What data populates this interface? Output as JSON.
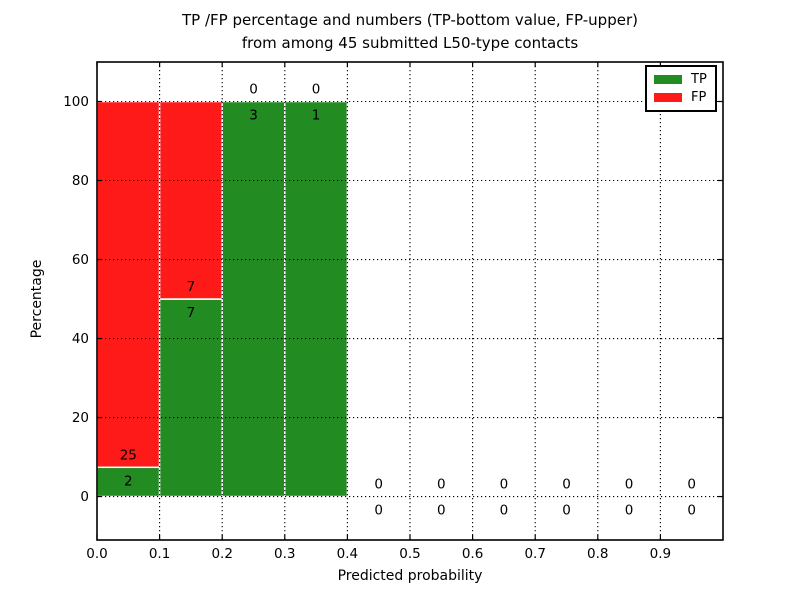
{
  "chart_data": {
    "type": "bar",
    "stacked": true,
    "title_line1": "TP /FP percentage and numbers (TP-bottom value, FP-upper)",
    "title_line2": "from among 45 submitted L50-type contacts",
    "xlabel": "Predicted probability",
    "ylabel": "Percentage",
    "x_ticks": [
      "0.0",
      "0.1",
      "0.2",
      "0.3",
      "0.4",
      "0.5",
      "0.6",
      "0.7",
      "0.8",
      "0.9"
    ],
    "y_ticks": [
      0,
      20,
      40,
      60,
      80,
      100
    ],
    "xlim": [
      0.0,
      1.0
    ],
    "ylim": [
      -11,
      110
    ],
    "grid": true,
    "legend_position": "upper right",
    "legend": [
      {
        "label": "TP",
        "color": "#228b22"
      },
      {
        "label": "FP",
        "color": "#ff1a1a"
      }
    ],
    "bins": [
      {
        "x_start": 0.0,
        "x_end": 0.1,
        "tp": 2,
        "fp": 25,
        "tp_pct": 7.4,
        "fp_pct": 92.6
      },
      {
        "x_start": 0.1,
        "x_end": 0.2,
        "tp": 7,
        "fp": 7,
        "tp_pct": 50.0,
        "fp_pct": 50.0
      },
      {
        "x_start": 0.2,
        "x_end": 0.3,
        "tp": 3,
        "fp": 0,
        "tp_pct": 100.0,
        "fp_pct": 0.0
      },
      {
        "x_start": 0.3,
        "x_end": 0.4,
        "tp": 1,
        "fp": 0,
        "tp_pct": 100.0,
        "fp_pct": 0.0
      },
      {
        "x_start": 0.4,
        "x_end": 0.5,
        "tp": 0,
        "fp": 0,
        "tp_pct": 0.0,
        "fp_pct": 0.0
      },
      {
        "x_start": 0.5,
        "x_end": 0.6,
        "tp": 0,
        "fp": 0,
        "tp_pct": 0.0,
        "fp_pct": 0.0
      },
      {
        "x_start": 0.6,
        "x_end": 0.7,
        "tp": 0,
        "fp": 0,
        "tp_pct": 0.0,
        "fp_pct": 0.0
      },
      {
        "x_start": 0.7,
        "x_end": 0.8,
        "tp": 0,
        "fp": 0,
        "tp_pct": 0.0,
        "fp_pct": 0.0
      },
      {
        "x_start": 0.8,
        "x_end": 0.9,
        "tp": 0,
        "fp": 0,
        "tp_pct": 0.0,
        "fp_pct": 0.0
      },
      {
        "x_start": 0.9,
        "x_end": 1.0,
        "tp": 0,
        "fp": 0,
        "tp_pct": 0.0,
        "fp_pct": 0.0
      }
    ]
  }
}
